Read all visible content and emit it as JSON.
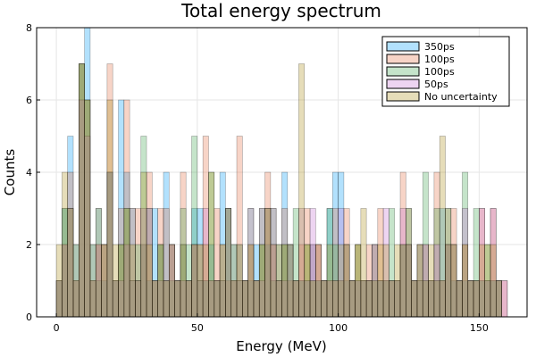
{
  "chart_data": {
    "type": "bar",
    "chart_style": "overlaid histogram",
    "title": "Total energy spectrum",
    "xlabel": "Energy (MeV)",
    "ylabel": "Counts",
    "xlim": [
      -7,
      167
    ],
    "ylim": [
      0,
      8
    ],
    "xticks": [
      0,
      50,
      100,
      150
    ],
    "yticks": [
      0,
      2,
      4,
      6,
      8
    ],
    "grid": true,
    "legend_position": "top-right",
    "bin_width": 2,
    "bin_start": 0,
    "series": [
      {
        "name": "350ps",
        "color": "#009AFA",
        "values": [
          1,
          3,
          5,
          2,
          7,
          8,
          2,
          3,
          1,
          4,
          1,
          6,
          4,
          3,
          1,
          2,
          1,
          3,
          2,
          4,
          2,
          1,
          2,
          1,
          3,
          3,
          1,
          2,
          1,
          4,
          3,
          2,
          2,
          1,
          1,
          2,
          3,
          2,
          3,
          1,
          4,
          2,
          1,
          1,
          1,
          2,
          1,
          1,
          3,
          4,
          4,
          1,
          1,
          1,
          1,
          1,
          1,
          1,
          1,
          1,
          1,
          2,
          2,
          1,
          2,
          1,
          1,
          1,
          3,
          2,
          1,
          1,
          1,
          1,
          1,
          1,
          1,
          1,
          1
        ]
      },
      {
        "name": "100ps",
        "color": "#E36F47",
        "values": [
          1,
          2,
          4,
          1,
          7,
          6,
          1,
          2,
          2,
          7,
          1,
          3,
          6,
          3,
          3,
          2,
          4,
          1,
          3,
          3,
          2,
          1,
          4,
          1,
          2,
          2,
          5,
          1,
          3,
          2,
          1,
          1,
          5,
          1,
          2,
          1,
          3,
          4,
          3,
          2,
          3,
          1,
          1,
          2,
          3,
          2,
          2,
          1,
          1,
          3,
          1,
          3,
          1,
          2,
          1,
          2,
          2,
          3,
          1,
          1,
          1,
          4,
          3,
          1,
          2,
          2,
          1,
          4,
          1,
          3,
          3,
          1,
          2,
          1,
          1,
          3,
          1,
          3,
          1,
          1
        ]
      },
      {
        "name": "100ps",
        "color": "#3EA44E",
        "values": [
          1,
          3,
          3,
          1,
          7,
          6,
          1,
          1,
          2,
          4,
          1,
          2,
          3,
          1,
          2,
          5,
          3,
          1,
          2,
          1,
          1,
          1,
          3,
          2,
          5,
          1,
          1,
          4,
          1,
          1,
          3,
          1,
          1,
          1,
          3,
          1,
          2,
          3,
          1,
          2,
          2,
          2,
          3,
          1,
          2,
          1,
          1,
          1,
          3,
          2,
          1,
          2,
          1,
          2,
          1,
          1,
          2,
          1,
          1,
          3,
          1,
          2,
          3,
          1,
          1,
          4,
          1,
          3,
          1,
          3,
          2,
          1,
          4,
          1,
          3,
          1,
          2,
          1,
          1
        ]
      },
      {
        "name": "50ps",
        "color": "#C271D2",
        "values": [
          1,
          2,
          3,
          1,
          6,
          5,
          1,
          2,
          2,
          4,
          1,
          1,
          2,
          1,
          1,
          3,
          3,
          1,
          1,
          1,
          2,
          1,
          1,
          1,
          2,
          1,
          3,
          1,
          1,
          1,
          3,
          1,
          1,
          1,
          3,
          1,
          1,
          3,
          2,
          1,
          1,
          2,
          1,
          3,
          1,
          3,
          2,
          1,
          1,
          1,
          3,
          2,
          1,
          1,
          1,
          1,
          2,
          1,
          3,
          1,
          1,
          3,
          2,
          1,
          1,
          2,
          1,
          2,
          1,
          2,
          2,
          1,
          3,
          1,
          1,
          3,
          1,
          3,
          1,
          1
        ]
      },
      {
        "name": "No uncertainty",
        "color": "#AC8D18",
        "values": [
          2,
          4,
          3,
          2,
          7,
          6,
          2,
          3,
          2,
          6,
          2,
          2,
          3,
          2,
          1,
          4,
          2,
          1,
          2,
          1,
          2,
          1,
          2,
          1,
          2,
          2,
          2,
          4,
          1,
          2,
          3,
          2,
          2,
          1,
          2,
          1,
          2,
          3,
          2,
          1,
          2,
          2,
          1,
          7,
          2,
          1,
          2,
          1,
          2,
          1,
          2,
          2,
          1,
          2,
          3,
          1,
          1,
          2,
          2,
          1,
          2,
          2,
          2,
          1,
          2,
          1,
          2,
          1,
          5,
          2,
          2,
          1,
          2,
          1,
          1,
          2,
          2,
          2,
          1
        ]
      }
    ]
  }
}
